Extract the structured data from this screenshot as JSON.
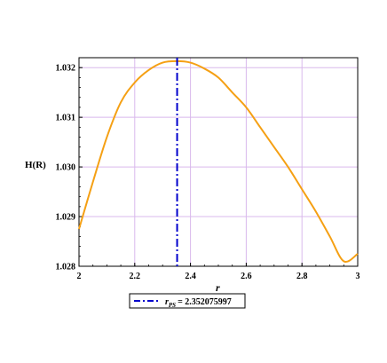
{
  "chart_data": {
    "type": "line",
    "title": "",
    "xlabel": "r",
    "ylabel": "H(R)",
    "xlim": [
      2.0,
      3.0
    ],
    "ylim": [
      1.028,
      1.0322
    ],
    "xticks": [
      "2",
      "2.2",
      "2.4",
      "2.6",
      "2.8",
      "3"
    ],
    "yticks": [
      "1.028",
      "1.029",
      "1.030",
      "1.031",
      "1.032"
    ],
    "grid": true,
    "series": [
      {
        "color": "#f5a014",
        "style": "solid",
        "x": [
          2.0,
          2.05,
          2.1,
          2.15,
          2.2,
          2.25,
          2.3,
          2.35,
          2.4,
          2.45,
          2.5,
          2.55,
          2.6,
          2.65,
          2.7,
          2.75,
          2.8,
          2.85,
          2.9,
          2.95,
          3.0
        ],
        "y": [
          1.02875,
          1.0297,
          1.0306,
          1.0313,
          1.0317,
          1.03195,
          1.0321,
          1.03213,
          1.0321,
          1.03198,
          1.0318,
          1.0315,
          1.0312,
          1.0308,
          1.0304,
          1.03,
          1.02955,
          1.0291,
          1.0286,
          1.0281,
          1.02825
        ]
      }
    ],
    "vline": {
      "x": 2.352075997,
      "color": "#0000cc",
      "style": "dashdot",
      "legend_label": "r",
      "legend_subscript": "PS",
      "legend_value": "= 2.352075997"
    },
    "legend_placement": "bottom-center"
  }
}
